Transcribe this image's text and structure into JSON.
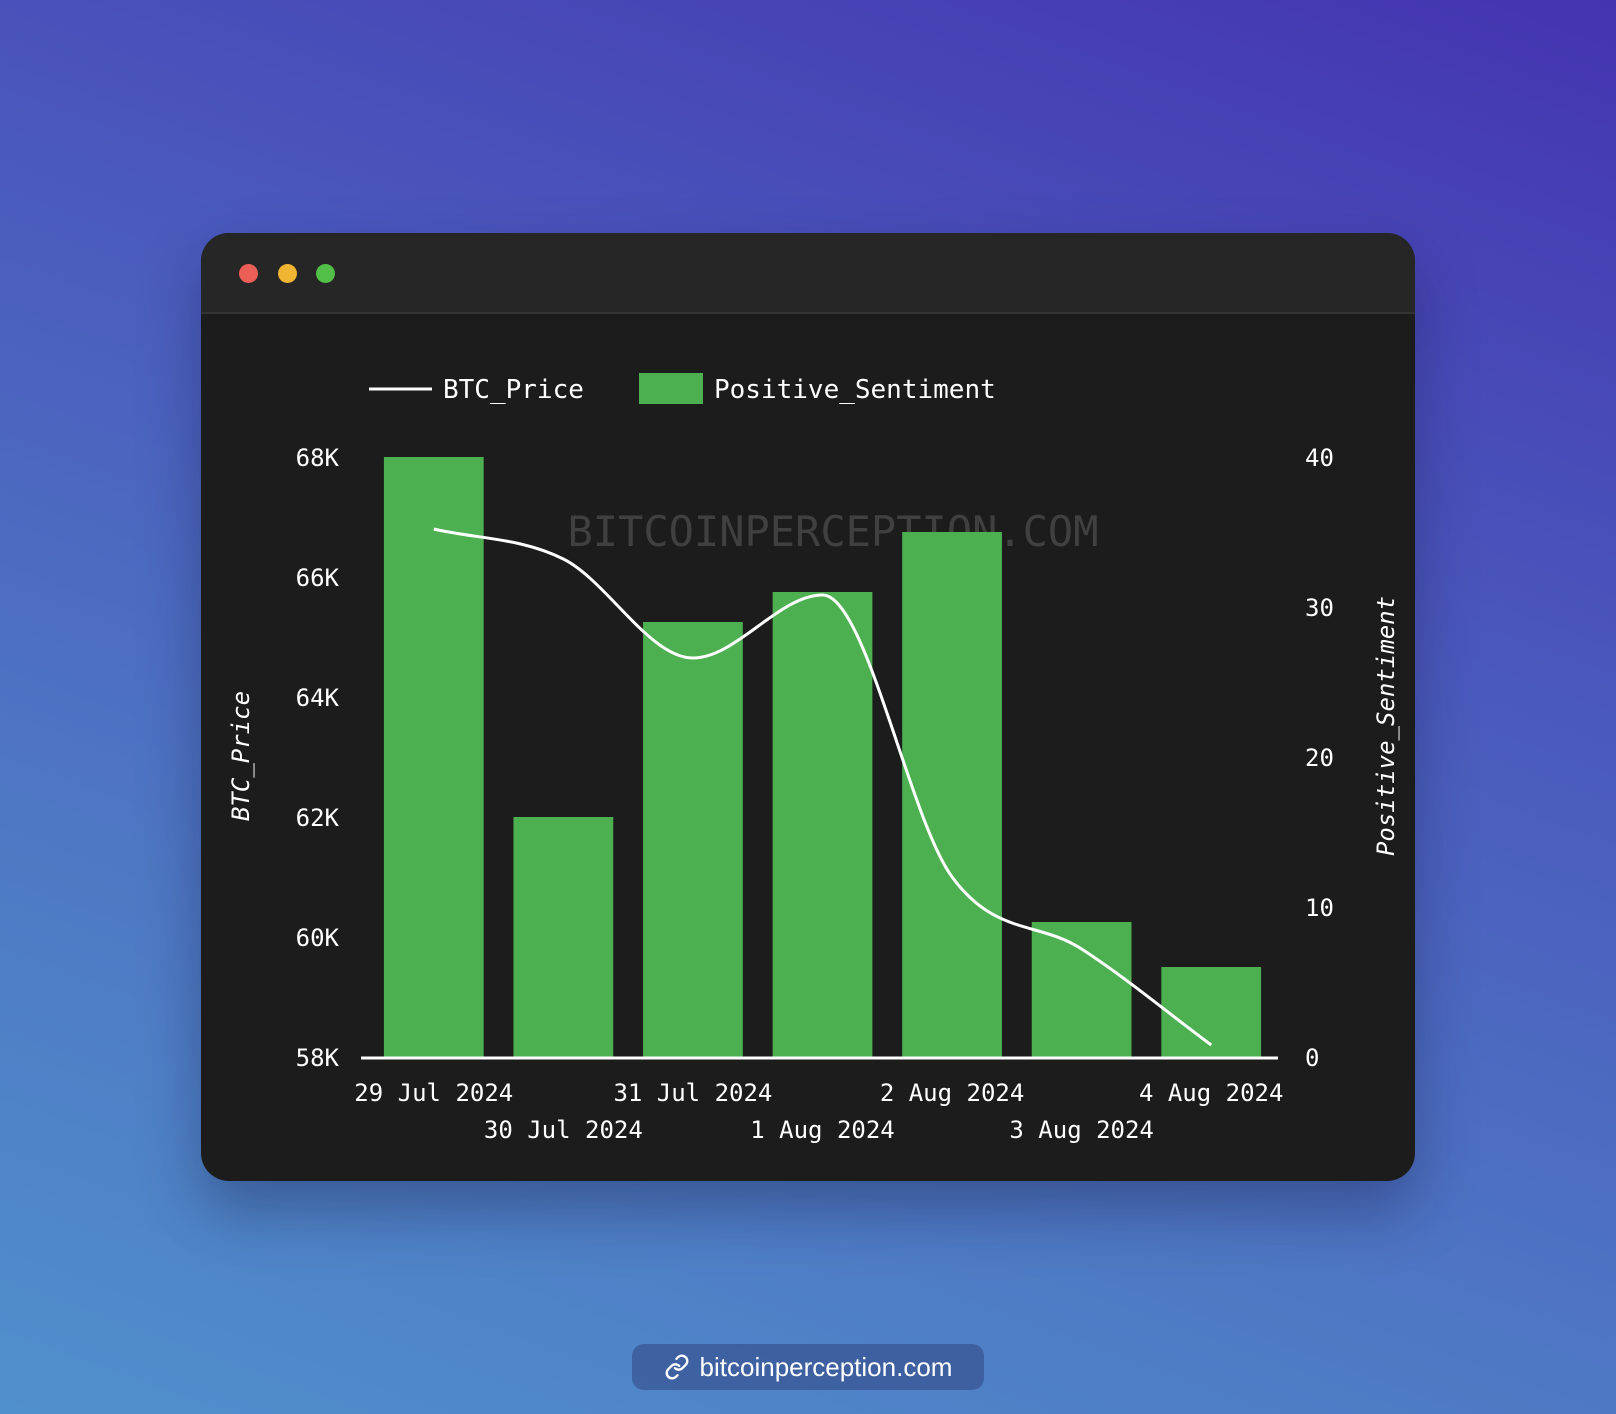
{
  "window": {
    "controls": [
      "close",
      "minimize",
      "maximize"
    ]
  },
  "chart_data": {
    "type": "bar",
    "categories": [
      "29 Jul 2024",
      "30 Jul 2024",
      "31 Jul 2024",
      "1 Aug 2024",
      "2 Aug 2024",
      "3 Aug 2024",
      "4 Aug 2024"
    ],
    "series": [
      {
        "name": "Positive_Sentiment",
        "type": "bar",
        "axis": "right",
        "color": "#4caf50",
        "values": [
          40,
          16,
          29,
          31,
          35,
          9,
          6
        ]
      },
      {
        "name": "BTC_Price",
        "type": "line",
        "axis": "left",
        "color": "#ffffff",
        "smooth": true,
        "values": [
          66800,
          66300,
          64650,
          65700,
          61000,
          59800,
          58200
        ]
      }
    ],
    "ylabel": "BTC_Price",
    "y2label": "Positive_Sentiment",
    "ylim": [
      58000,
      68000
    ],
    "y2lim": [
      0,
      40
    ],
    "yticks": [
      "58K",
      "60K",
      "62K",
      "64K",
      "66K",
      "68K"
    ],
    "y2ticks": [
      "0",
      "10",
      "20",
      "30",
      "40"
    ],
    "legend": [
      "BTC_Price",
      "Positive_Sentiment"
    ],
    "legend_position": "top-left",
    "grid": false,
    "watermark": "BITCOINPERCEPTION.COM"
  },
  "footer": {
    "link_icon": "link-icon",
    "link_text": "bitcoinperception.com"
  }
}
